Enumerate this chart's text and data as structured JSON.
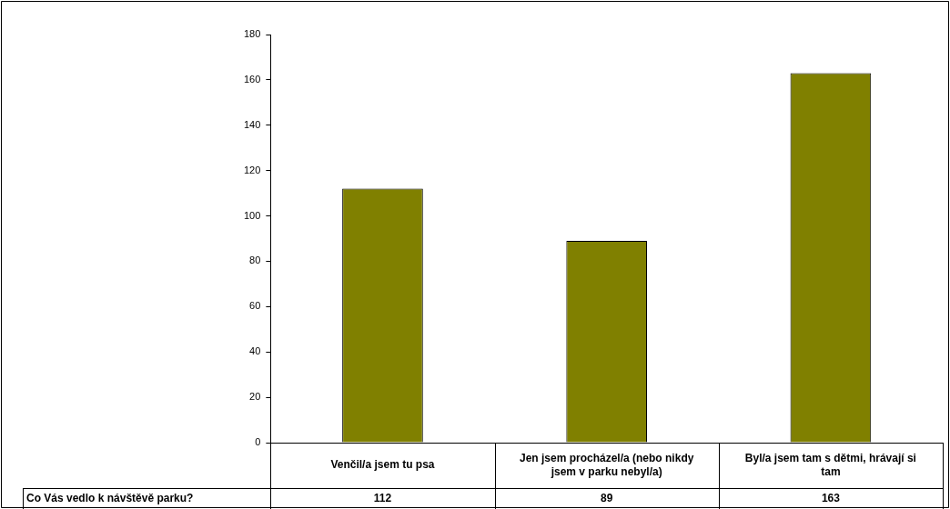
{
  "chart_data": {
    "type": "bar",
    "categories": [
      "Venčil/a jsem tu psa",
      "Jen jsem procházel/a (nebo nikdy jsem v parku nebyl/a)",
      "Byl/a jsem tam s dětmi, hrávají si tam"
    ],
    "series": [
      {
        "name": "Co Vás vedlo k návštěvě parku?",
        "color": "#808000",
        "values": [
          112,
          89,
          163
        ]
      }
    ],
    "ylim": [
      0,
      180
    ],
    "yticks": [
      0,
      20,
      40,
      60,
      80,
      100,
      120,
      140,
      160,
      180
    ],
    "grid": false,
    "legend": false,
    "data_labels": true
  }
}
